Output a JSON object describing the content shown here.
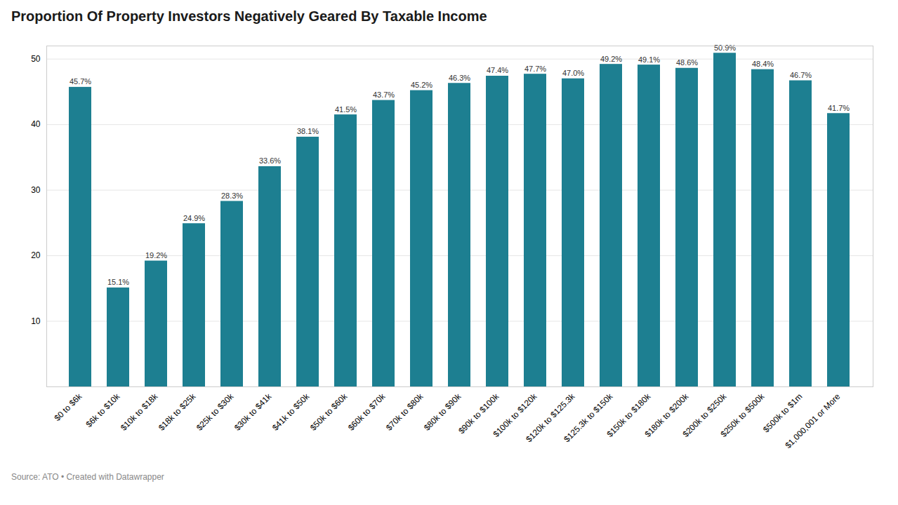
{
  "chart_data": {
    "type": "bar",
    "title": "Proportion Of Property Investors Negatively Geared By Taxable Income",
    "caption": "Source: ATO • Created with Datawrapper",
    "categories": [
      "$0 to $6k",
      "$6k to $10k",
      "$10k to $18k",
      "$18k to $25k",
      "$25k to $30k",
      "$30k to $41k",
      "$41k to $50k",
      "$50k to $60k",
      "$60k to $70k",
      "$70k to $80k",
      "$80k to $90k",
      "$90k to $100k",
      "$100k to $120k",
      "$120k to $125.3k",
      "$125.3k to $150k",
      "$150k to $180k",
      "$180k to $200k",
      "$200k to $250k",
      "$250k to $500k",
      "$500k to $1m",
      "$1,000,001 or More"
    ],
    "values": [
      45.7,
      15.1,
      19.2,
      24.9,
      28.3,
      33.6,
      38.1,
      41.5,
      43.7,
      45.2,
      46.3,
      47.4,
      47.7,
      47.0,
      49.2,
      49.1,
      48.6,
      50.9,
      48.4,
      46.7,
      41.7
    ],
    "value_labels": [
      "45.7%",
      "15.1%",
      "19.2%",
      "24.9%",
      "28.3%",
      "33.6%",
      "38.1%",
      "41.5%",
      "43.7%",
      "45.2%",
      "46.3%",
      "47.4%",
      "47.7%",
      "47.0%",
      "49.2%",
      "49.1%",
      "48.6%",
      "50.9%",
      "48.4%",
      "46.7%",
      "41.7%"
    ],
    "color": "#1d7f91",
    "ylim": [
      0,
      52
    ],
    "yticks": [
      10,
      20,
      30,
      40,
      50
    ],
    "grid": true,
    "data_labels": true
  }
}
